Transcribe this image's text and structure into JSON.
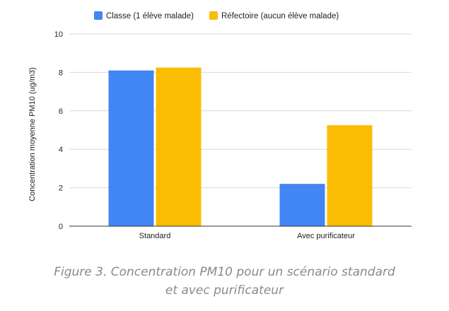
{
  "chart_data": {
    "type": "bar",
    "categories": [
      "Standard",
      "Avec purificateur"
    ],
    "series": [
      {
        "name": "Classe (1 élève malade)",
        "values": [
          8.1,
          2.2
        ],
        "color": "#4285f4"
      },
      {
        "name": "Réfectoire (aucun élève malade)",
        "values": [
          8.25,
          5.25
        ],
        "color": "#fbbc04"
      }
    ],
    "ylabel": "Concentration moyenne PM10 (ug/m3)",
    "xlabel": "",
    "ylim": [
      0,
      10
    ],
    "yticks": [
      0,
      2,
      4,
      6,
      8,
      10
    ],
    "grid": true,
    "legend_position": "top"
  },
  "caption": {
    "line1": "Figure 3. Concentration PM10 pour un scénario standard",
    "line2": "et avec purificateur"
  }
}
